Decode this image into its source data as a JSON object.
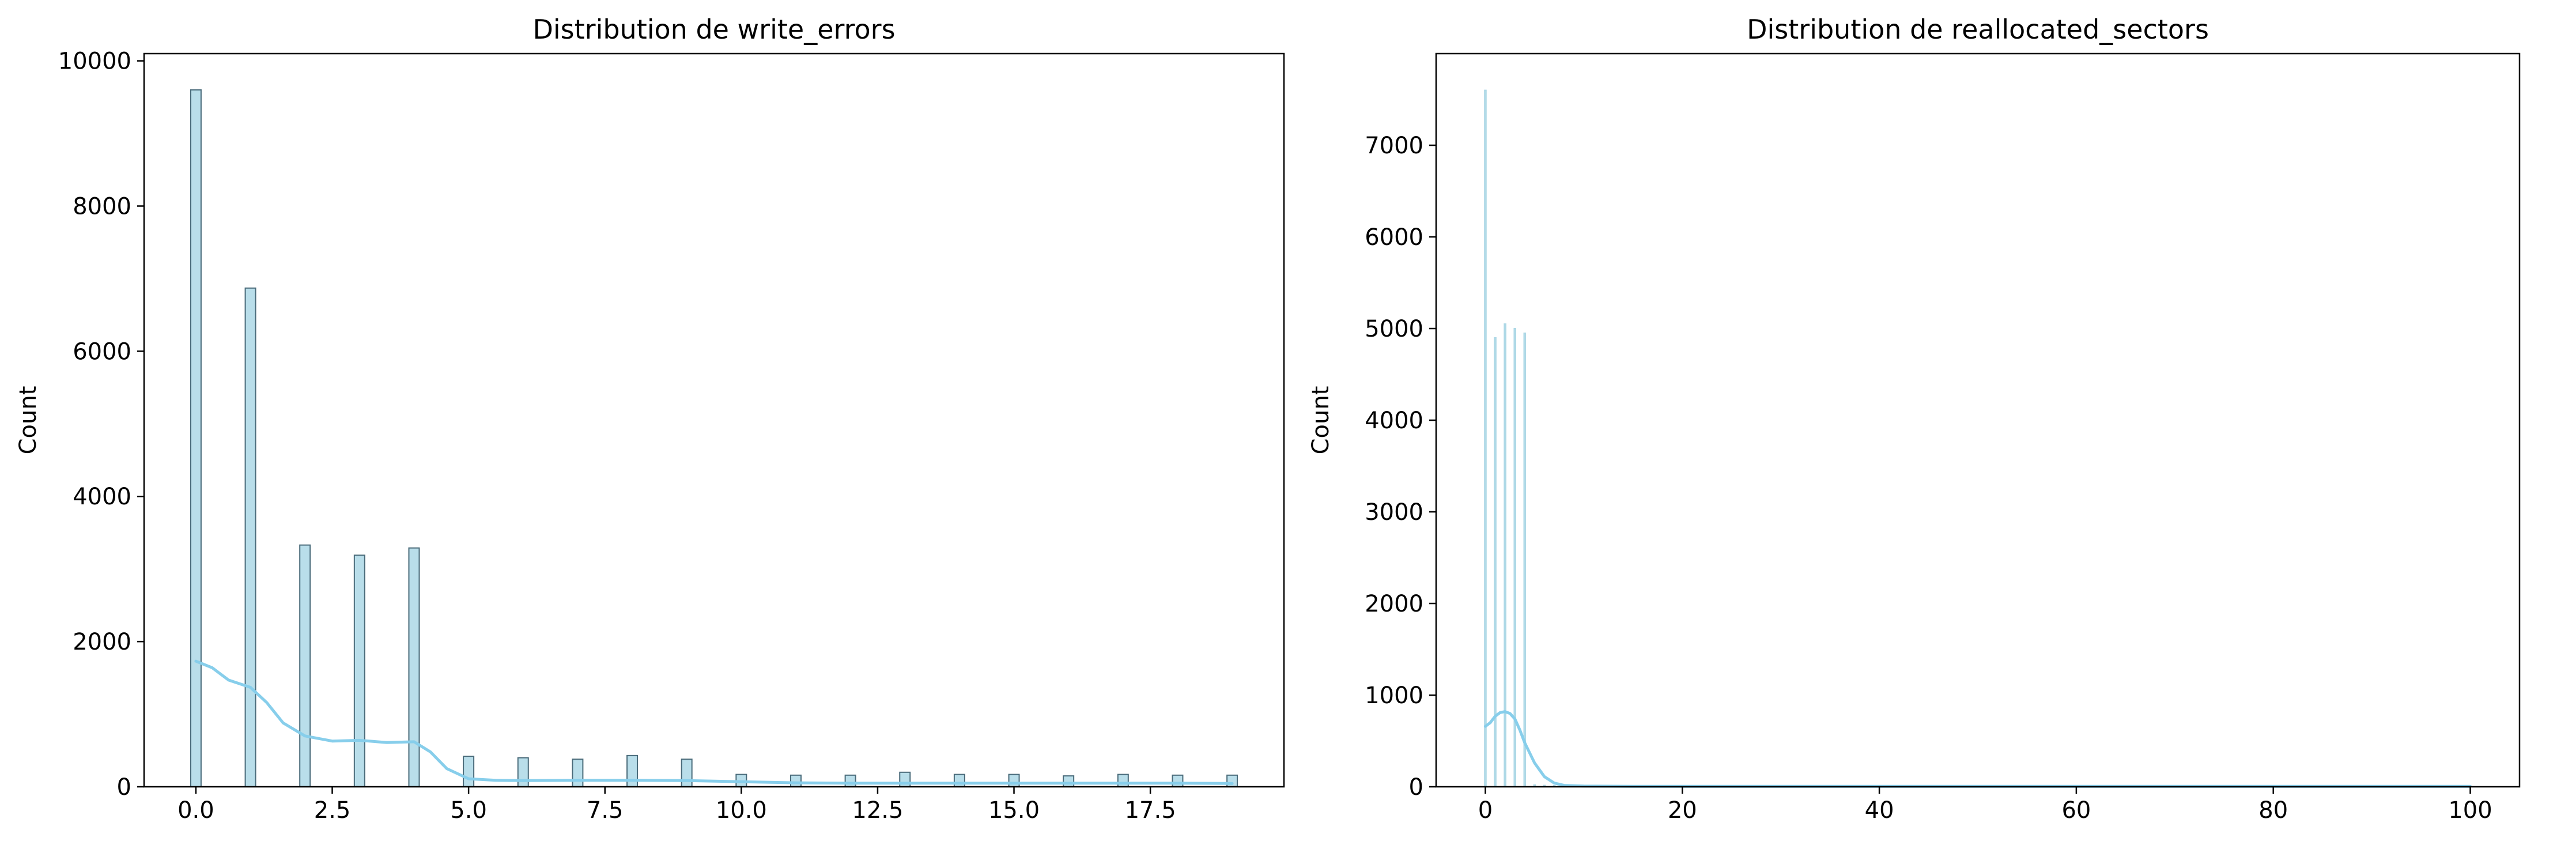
{
  "chart_data": [
    {
      "type": "bar",
      "title": "Distribution de write_errors",
      "xlabel": "",
      "ylabel": "Count",
      "xlim": [
        -0.95,
        19.95
      ],
      "ylim": [
        0,
        10100
      ],
      "xticks": [
        0.0,
        2.5,
        5.0,
        7.5,
        10.0,
        12.5,
        15.0,
        17.5
      ],
      "xtick_labels": [
        "0.0",
        "2.5",
        "5.0",
        "7.5",
        "10.0",
        "12.5",
        "15.0",
        "17.5"
      ],
      "yticks": [
        0,
        2000,
        4000,
        6000,
        8000,
        10000
      ],
      "ytick_labels": [
        "0",
        "2000",
        "4000",
        "6000",
        "8000",
        "10000"
      ],
      "bar_width": 0.19,
      "x": [
        0,
        1,
        2,
        3,
        4,
        5,
        6,
        7,
        8,
        9,
        10,
        11,
        12,
        13,
        14,
        15,
        16,
        17,
        18,
        19
      ],
      "values": [
        9600,
        6870,
        3330,
        3190,
        3290,
        420,
        400,
        380,
        430,
        380,
        170,
        160,
        160,
        200,
        170,
        170,
        150,
        170,
        160,
        160
      ],
      "kde": {
        "x": [
          0,
          0.3,
          0.6,
          1.0,
          1.3,
          1.6,
          2.0,
          2.5,
          3.0,
          3.5,
          4.0,
          4.3,
          4.6,
          5.0,
          5.5,
          6.0,
          7.0,
          8.0,
          9.0,
          10.0,
          11.0,
          12.0,
          13.0,
          14.0,
          15.0,
          16.0,
          17.0,
          18.0,
          19.0
        ],
        "y": [
          1730,
          1640,
          1470,
          1370,
          1160,
          880,
          700,
          630,
          640,
          610,
          620,
          480,
          250,
          110,
          90,
          85,
          90,
          90,
          85,
          70,
          55,
          50,
          50,
          50,
          50,
          50,
          50,
          50,
          45
        ]
      },
      "bar_color": "#add8e6",
      "edge_color": "#4a6b7a",
      "kde_color": "#87ceeb",
      "grid": false,
      "legend": "none"
    },
    {
      "type": "bar",
      "title": "Distribution de reallocated_sectors",
      "xlabel": "",
      "ylabel": "Count",
      "xlim": [
        -5,
        105
      ],
      "ylim": [
        0,
        8000
      ],
      "xticks": [
        0,
        20,
        40,
        60,
        80,
        100
      ],
      "xtick_labels": [
        "0",
        "20",
        "40",
        "60",
        "80",
        "100"
      ],
      "yticks": [
        0,
        1000,
        2000,
        3000,
        4000,
        5000,
        6000,
        7000
      ],
      "ytick_labels": [
        "0",
        "1000",
        "2000",
        "3000",
        "4000",
        "5000",
        "6000",
        "7000"
      ],
      "bar_width": 0.15,
      "x": [
        0,
        1,
        2,
        3,
        4,
        5,
        6,
        7,
        8,
        9,
        10,
        12,
        15,
        20,
        30,
        40,
        50,
        60,
        70,
        80,
        90,
        100
      ],
      "values": [
        7600,
        4900,
        5050,
        5000,
        4950,
        20,
        15,
        12,
        10,
        8,
        6,
        5,
        5,
        4,
        4,
        4,
        4,
        4,
        4,
        4,
        4,
        4
      ],
      "kde": {
        "x": [
          0,
          0.5,
          1.0,
          1.5,
          2.0,
          2.5,
          3.0,
          3.5,
          4.0,
          5.0,
          6.0,
          7.0,
          8.0,
          10.0,
          15.0,
          20.0,
          40.0,
          60.0,
          80.0,
          100.0
        ],
        "y": [
          660,
          700,
          770,
          810,
          820,
          800,
          740,
          620,
          480,
          260,
          110,
          40,
          15,
          8,
          5,
          5,
          5,
          5,
          5,
          5
        ]
      },
      "bar_color": "#add8e6",
      "edge_color": "#add8e6",
      "kde_color": "#87ceeb",
      "grid": false,
      "legend": "none"
    }
  ]
}
